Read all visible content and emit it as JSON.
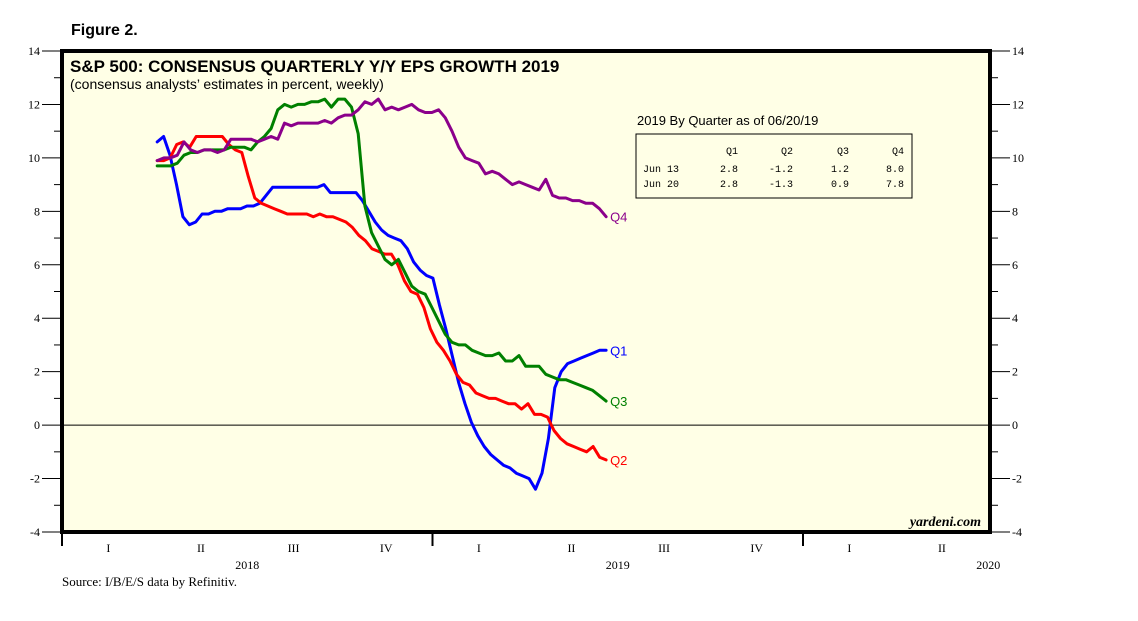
{
  "figure_label": "Figure 2.",
  "source": "Source: I/B/E/S data by Refinitiv.",
  "credit": "yardeni.com",
  "chart_data": {
    "type": "line",
    "title": "S&P 500: CONSENSUS QUARTERLY Y/Y EPS GROWTH 2019",
    "subtitle": "(consensus analysts’ estimates in percent, weekly)",
    "xlabel": "",
    "ylabel": "",
    "ylim": [
      -4,
      14
    ],
    "yticks": [
      -4,
      -2,
      0,
      2,
      4,
      6,
      8,
      10,
      12,
      14
    ],
    "xlim_years": [
      2018,
      2020.5
    ],
    "x_quarter_labels": [
      "I",
      "II",
      "III",
      "IV",
      "I",
      "II",
      "III",
      "IV",
      "I",
      "II"
    ],
    "x_year_labels": [
      {
        "label": "2018",
        "year": 2018
      },
      {
        "label": "2019",
        "year": 2019
      },
      {
        "label": "2020",
        "year": 2020
      }
    ],
    "zero_line": true,
    "grid": false,
    "x_start_year": 2018.257,
    "x_step_weeks": 1,
    "series": [
      {
        "name": "Q1",
        "color": "#0000ff",
        "values": [
          10.6,
          10.8,
          10.1,
          9.0,
          7.8,
          7.5,
          7.6,
          7.9,
          7.9,
          8.0,
          8.0,
          8.1,
          8.1,
          8.1,
          8.2,
          8.2,
          8.3,
          8.6,
          8.9,
          8.9,
          8.9,
          8.9,
          8.9,
          8.9,
          8.9,
          8.9,
          9.0,
          8.7,
          8.7,
          8.7,
          8.7,
          8.7,
          8.4,
          8.0,
          7.6,
          7.3,
          7.1,
          7.0,
          6.9,
          6.6,
          6.1,
          5.8,
          5.6,
          5.5,
          4.5,
          3.6,
          2.6,
          1.6,
          0.8,
          0.1,
          -0.4,
          -0.8,
          -1.1,
          -1.3,
          -1.5,
          -1.6,
          -1.8,
          -1.9,
          -2.0,
          -2.4,
          -1.8,
          -0.5,
          1.4,
          2.0,
          2.3,
          2.4,
          2.5,
          2.6,
          2.7,
          2.8,
          2.8
        ]
      },
      {
        "name": "Q2",
        "color": "#ff0000",
        "values": [
          9.9,
          9.9,
          10.0,
          10.5,
          10.6,
          10.4,
          10.8,
          10.8,
          10.8,
          10.8,
          10.8,
          10.5,
          10.3,
          10.2,
          9.3,
          8.5,
          8.3,
          8.2,
          8.1,
          8.0,
          7.9,
          7.9,
          7.9,
          7.9,
          7.8,
          7.9,
          7.8,
          7.8,
          7.7,
          7.6,
          7.4,
          7.1,
          6.9,
          6.6,
          6.5,
          6.4,
          6.4,
          6.0,
          5.4,
          5.0,
          4.9,
          4.4,
          3.6,
          3.1,
          2.8,
          2.4,
          1.9,
          1.6,
          1.5,
          1.2,
          1.1,
          1.0,
          1.0,
          0.9,
          0.8,
          0.8,
          0.6,
          0.8,
          0.4,
          0.4,
          0.3,
          -0.2,
          -0.5,
          -0.7,
          -0.8,
          -0.9,
          -1.0,
          -0.8,
          -1.2,
          -1.3
        ]
      },
      {
        "name": "Q3",
        "color": "#008000",
        "values": [
          9.7,
          9.7,
          9.7,
          9.8,
          10.1,
          10.2,
          10.2,
          10.3,
          10.3,
          10.3,
          10.3,
          10.4,
          10.4,
          10.4,
          10.3,
          10.6,
          10.8,
          11.1,
          11.8,
          12.0,
          11.9,
          12.0,
          12.0,
          12.1,
          12.1,
          12.2,
          11.9,
          12.2,
          12.2,
          11.9,
          10.9,
          8.2,
          7.2,
          6.7,
          6.2,
          6.0,
          6.2,
          5.7,
          5.2,
          5.0,
          4.9,
          4.4,
          3.9,
          3.4,
          3.1,
          3.0,
          3.0,
          2.8,
          2.7,
          2.6,
          2.6,
          2.7,
          2.4,
          2.4,
          2.6,
          2.2,
          2.2,
          2.2,
          1.9,
          1.8,
          1.7,
          1.7,
          1.6,
          1.5,
          1.4,
          1.3,
          1.1,
          0.9
        ]
      },
      {
        "name": "Q4",
        "color": "#8b008b",
        "values": [
          9.9,
          10.0,
          10.0,
          10.1,
          10.6,
          10.3,
          10.2,
          10.3,
          10.3,
          10.2,
          10.3,
          10.7,
          10.7,
          10.7,
          10.7,
          10.6,
          10.7,
          10.8,
          10.7,
          11.3,
          11.2,
          11.3,
          11.3,
          11.3,
          11.3,
          11.4,
          11.3,
          11.5,
          11.6,
          11.6,
          11.8,
          12.1,
          12.0,
          12.2,
          11.8,
          11.9,
          11.8,
          11.9,
          12.0,
          11.8,
          11.7,
          11.7,
          11.8,
          11.5,
          11.0,
          10.4,
          10.0,
          9.9,
          9.8,
          9.4,
          9.5,
          9.4,
          9.2,
          9.0,
          9.1,
          9.0,
          8.9,
          8.8,
          9.2,
          8.6,
          8.5,
          8.5,
          8.4,
          8.4,
          8.3,
          8.3,
          8.1,
          7.8
        ]
      }
    ],
    "series_end_labels": [
      "Q1",
      "Q2",
      "Q3",
      "Q4"
    ],
    "inset_table": {
      "title": "2019 By Quarter as of 06/20/19",
      "columns": [
        "",
        "Q1",
        "Q2",
        "Q3",
        "Q4"
      ],
      "rows": [
        [
          "Jun 13",
          "2.8",
          "-1.2",
          "1.2",
          "8.0"
        ],
        [
          "Jun 20",
          "2.8",
          "-1.3",
          "0.9",
          "7.8"
        ]
      ]
    },
    "plot_background": "#ffffe6"
  }
}
